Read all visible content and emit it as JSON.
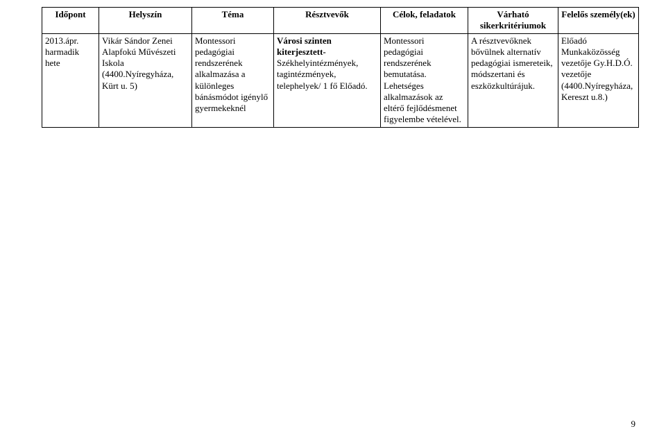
{
  "table": {
    "columns": [
      "Időpont",
      "Helyszín",
      "Téma",
      "Résztvevők",
      "Célok, feladatok",
      "Várható sikerkritériumok",
      "Felelős személy(ek)"
    ],
    "row": {
      "idopont": "2013.ápr. harmadik hete",
      "helyszin": "Vikár Sándor Zenei Alapfokú Művészeti Iskola (4400.Nyíregyháza, Kürt u. 5)",
      "tema": "Montessori pedagógiai rendszerének alkalmazása a különleges bánásmódot igénylő gyermekeknél",
      "resztvevok_prefix": "Városi szinten kiterjesztett-",
      "resztvevok_rest": " Székhelyintézmények, tagintézmények, telephelyek/ 1 fő Előadó.",
      "celok": "Montessori pedagógiai rendszerének bemutatása. Lehetséges alkalmazások az eltérő fejlődésmenet figyelembe vételével.",
      "varhato": "A résztvevőknek bővülnek alternatív pedagógiai ismereteik, módszertani és eszközkultúrájuk.",
      "felelos": "Előadó Munkaközösség vezetője Gy.H.D.Ó. vezetője (4400.Nyíregyháza, Kereszt u.8.)"
    }
  },
  "page_number": "9"
}
